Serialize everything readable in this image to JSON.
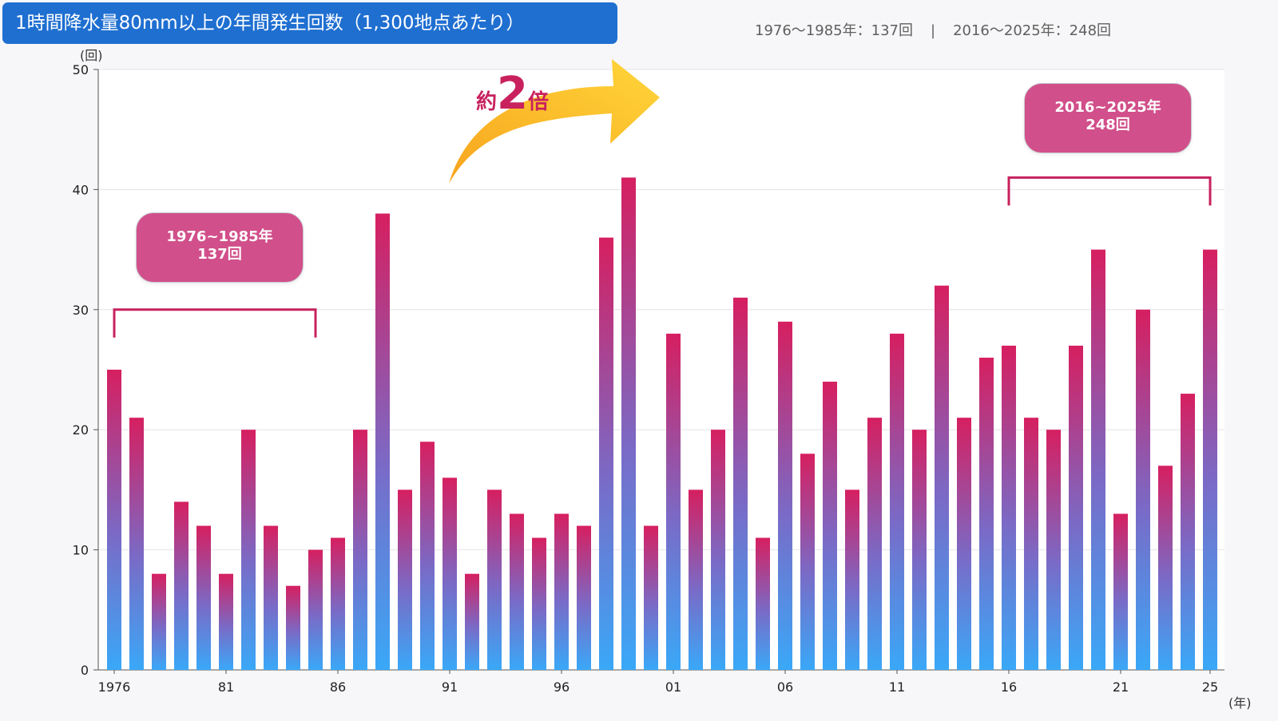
{
  "header": {
    "title": "1時間降水量80mm以上の年間発生回数（1,300地点あたり）",
    "summary_left": "1976〜1985年：137回",
    "separator": "|",
    "summary_right": "2016〜2025年：248回"
  },
  "annotations": {
    "period1_line1": "1976~1985年",
    "period1_line2": "137回",
    "period2_line1": "2016~2025年",
    "period2_line2": "248回",
    "growth_prefix": "約",
    "growth_number": "2",
    "growth_suffix": "倍"
  },
  "colors": {
    "bar_top": "#d61f60",
    "bar_mid": "#7a6ac6",
    "bar_bottom": "#3aa8f8",
    "bracket": "#c8215e",
    "arrow_start": "#f7a41d",
    "arrow_end": "#ffd63a"
  },
  "chart_data": {
    "type": "bar",
    "y_unit": "(回)",
    "x_unit": "(年)",
    "ylim": [
      0,
      50
    ],
    "yticks": [
      0,
      10,
      20,
      30,
      40,
      50
    ],
    "x_tick_labels": [
      {
        "year": 1976,
        "label": "1976"
      },
      {
        "year": 1981,
        "label": "81"
      },
      {
        "year": 1986,
        "label": "86"
      },
      {
        "year": 1991,
        "label": "91"
      },
      {
        "year": 1996,
        "label": "96"
      },
      {
        "year": 2001,
        "label": "01"
      },
      {
        "year": 2006,
        "label": "06"
      },
      {
        "year": 2011,
        "label": "11"
      },
      {
        "year": 2016,
        "label": "16"
      },
      {
        "year": 2021,
        "label": "21"
      },
      {
        "year": 2025,
        "label": "25"
      }
    ],
    "grid": true,
    "years": [
      1976,
      1977,
      1978,
      1979,
      1980,
      1981,
      1982,
      1983,
      1984,
      1985,
      1986,
      1987,
      1988,
      1989,
      1990,
      1991,
      1992,
      1993,
      1994,
      1995,
      1996,
      1997,
      1998,
      1999,
      2000,
      2001,
      2002,
      2003,
      2004,
      2005,
      2006,
      2007,
      2008,
      2009,
      2010,
      2011,
      2012,
      2013,
      2014,
      2015,
      2016,
      2017,
      2018,
      2019,
      2020,
      2021,
      2022,
      2023,
      2024,
      2025
    ],
    "values": [
      25,
      21,
      8,
      14,
      12,
      8,
      20,
      12,
      7,
      10,
      11,
      20,
      38,
      15,
      19,
      16,
      8,
      15,
      13,
      11,
      13,
      12,
      36,
      41,
      12,
      28,
      15,
      20,
      31,
      11,
      29,
      18,
      24,
      15,
      21,
      28,
      20,
      32,
      21,
      26,
      27,
      21,
      20,
      27,
      35,
      13,
      30,
      17,
      23,
      35
    ]
  }
}
